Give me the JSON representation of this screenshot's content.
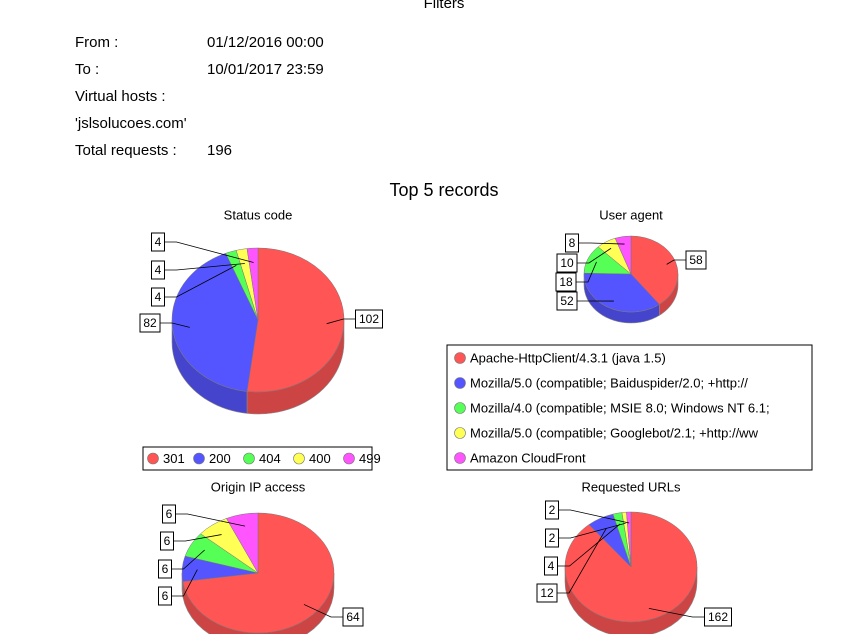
{
  "filters": {
    "title": "Filters",
    "rows": [
      [
        "From :",
        "01/12/2016 00:00"
      ],
      [
        "To :",
        "10/01/2017 23:59"
      ],
      [
        "Virtual hosts :"
      ],
      [
        "'jslsolucoes.com'"
      ],
      [
        "Total requests :",
        "196"
      ]
    ]
  },
  "section_title": "Top 5 records",
  "chart_data": [
    {
      "type": "pie",
      "title": "Status code",
      "categories": [
        "301",
        "200",
        "404",
        "400",
        "499"
      ],
      "values": [
        102,
        82,
        4,
        4,
        4
      ],
      "colors": [
        "#ff5555",
        "#5555ff",
        "#55ff55",
        "#ffff55",
        "#ff55ff"
      ],
      "legend": "bottom"
    },
    {
      "type": "pie",
      "title": "User agent",
      "categories": [
        "Apache-HttpClient/4.3.1 (java 1.5)",
        "Mozilla/5.0 (compatible; Baiduspider/2.0; +http://",
        "Mozilla/4.0 (compatible; MSIE 8.0; Windows NT 6.1;",
        "Mozilla/5.0 (compatible; Googlebot/2.1; +http://ww",
        "Amazon CloudFront"
      ],
      "values": [
        58,
        52,
        18,
        10,
        8
      ],
      "colors": [
        "#ff5555",
        "#5555ff",
        "#55ff55",
        "#ffff55",
        "#ff55ff"
      ],
      "legend": "bottom"
    },
    {
      "type": "pie",
      "title": "Origin IP access",
      "values": [
        64,
        6,
        6,
        6,
        6
      ],
      "colors": [
        "#ff5555",
        "#5555ff",
        "#55ff55",
        "#ffff55",
        "#ff55ff"
      ]
    },
    {
      "type": "pie",
      "title": "Requested URLs",
      "values": [
        162,
        12,
        4,
        2,
        2
      ],
      "colors": [
        "#ff5555",
        "#5555ff",
        "#55ff55",
        "#ffff55",
        "#ff55ff"
      ]
    }
  ]
}
